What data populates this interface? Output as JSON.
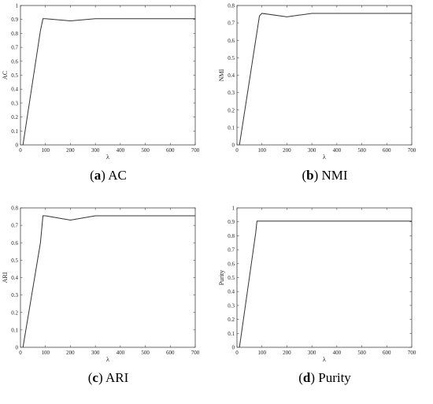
{
  "chart_data": [
    {
      "type": "line",
      "panel_letter": "a",
      "panel_title": "AC",
      "xlabel": "λ",
      "ylabel": "AC",
      "xlim": [
        0,
        700
      ],
      "ylim": [
        0,
        1
      ],
      "xticks": [
        "0",
        "100",
        "200",
        "300",
        "400",
        "500",
        "600",
        "700"
      ],
      "yticks": [
        "0",
        "0.1",
        "0.2",
        "0.3",
        "0.4",
        "0.5",
        "0.6",
        "0.7",
        "0.8",
        "0.9",
        "1"
      ],
      "x": [
        10,
        80,
        90,
        100,
        200,
        300,
        700
      ],
      "values": [
        0.0,
        0.82,
        0.905,
        0.905,
        0.89,
        0.905,
        0.905
      ]
    },
    {
      "type": "line",
      "panel_letter": "b",
      "panel_title": "NMI",
      "xlabel": "λ",
      "ylabel": "NMI",
      "xlim": [
        0,
        700
      ],
      "ylim": [
        0,
        0.8
      ],
      "xticks": [
        "0",
        "100",
        "200",
        "300",
        "400",
        "500",
        "600",
        "700"
      ],
      "yticks": [
        "0",
        "0.1",
        "0.2",
        "0.3",
        "0.4",
        "0.5",
        "0.6",
        "0.7",
        "0.8"
      ],
      "x": [
        10,
        90,
        100,
        200,
        300,
        700
      ],
      "values": [
        0.0,
        0.74,
        0.755,
        0.735,
        0.755,
        0.755
      ]
    },
    {
      "type": "line",
      "panel_letter": "c",
      "panel_title": "ARI",
      "xlabel": "λ",
      "ylabel": "ARI",
      "xlim": [
        0,
        700
      ],
      "ylim": [
        0,
        0.8
      ],
      "xticks": [
        "0",
        "100",
        "200",
        "300",
        "400",
        "500",
        "600",
        "700"
      ],
      "yticks": [
        "0",
        "0.1",
        "0.2",
        "0.3",
        "0.4",
        "0.5",
        "0.6",
        "0.7",
        "0.8"
      ],
      "x": [
        10,
        80,
        90,
        100,
        200,
        300,
        700
      ],
      "values": [
        0.0,
        0.6,
        0.755,
        0.755,
        0.73,
        0.755,
        0.755
      ]
    },
    {
      "type": "line",
      "panel_letter": "d",
      "panel_title": "Purity",
      "xlabel": "λ",
      "ylabel": "Purity",
      "xlim": [
        0,
        700
      ],
      "ylim": [
        0,
        1
      ],
      "xticks": [
        "0",
        "100",
        "200",
        "300",
        "400",
        "500",
        "600",
        "700"
      ],
      "yticks": [
        "0",
        "0.1",
        "0.2",
        "0.3",
        "0.4",
        "0.5",
        "0.6",
        "0.7",
        "0.8",
        "0.9",
        "1"
      ],
      "x": [
        10,
        75,
        80,
        100,
        200,
        300,
        700
      ],
      "values": [
        0.0,
        0.82,
        0.905,
        0.905,
        0.905,
        0.905,
        0.905
      ]
    }
  ]
}
